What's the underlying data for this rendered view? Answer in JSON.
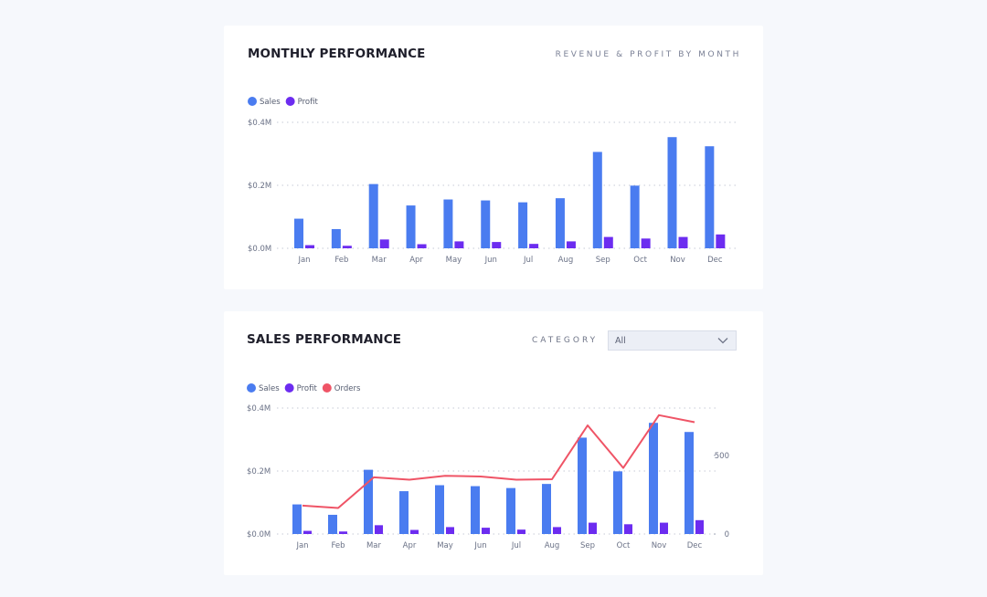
{
  "colors": {
    "sales": "#4a7cf0",
    "profit": "#6c2cf0",
    "orders": "#ef5466",
    "grid": "#c6cad6"
  },
  "card1": {
    "title": "MONTHLY PERFORMANCE",
    "subtitle": "REVENUE & PROFIT BY MONTH"
  },
  "card2": {
    "title": "SALES PERFORMANCE",
    "filter_label": "CATEGORY",
    "filter_value": "All",
    "chevron_icon": "chevron-down-icon"
  },
  "chart_data": [
    {
      "type": "bar",
      "categories": [
        "Jan",
        "Feb",
        "Mar",
        "Apr",
        "May",
        "Jun",
        "Jul",
        "Aug",
        "Sep",
        "Oct",
        "Nov",
        "Dec"
      ],
      "series": [
        {
          "name": "Sales",
          "values": [
            0.094,
            0.061,
            0.204,
            0.136,
            0.155,
            0.152,
            0.146,
            0.159,
            0.306,
            0.199,
            0.353,
            0.324
          ]
        },
        {
          "name": "Profit",
          "values": [
            0.01,
            0.008,
            0.028,
            0.013,
            0.022,
            0.02,
            0.014,
            0.022,
            0.036,
            0.031,
            0.036,
            0.044
          ]
        }
      ],
      "yticks": [
        "$0.0M",
        "$0.2M",
        "$0.4M"
      ],
      "ylim": [
        0,
        0.4
      ],
      "legend_position": "top-left",
      "grid": true
    },
    {
      "type": "bar",
      "categories": [
        "Jan",
        "Feb",
        "Mar",
        "Apr",
        "May",
        "Jun",
        "Jul",
        "Aug",
        "Sep",
        "Oct",
        "Nov",
        "Dec"
      ],
      "series": [
        {
          "name": "Sales",
          "values": [
            0.094,
            0.061,
            0.204,
            0.136,
            0.155,
            0.152,
            0.146,
            0.159,
            0.306,
            0.199,
            0.353,
            0.324
          ]
        },
        {
          "name": "Profit",
          "values": [
            0.01,
            0.008,
            0.028,
            0.013,
            0.022,
            0.02,
            0.014,
            0.022,
            0.036,
            0.031,
            0.036,
            0.044
          ]
        },
        {
          "name": "Orders",
          "type": "line",
          "axis": "right",
          "values": [
            180,
            165,
            360,
            345,
            370,
            365,
            345,
            348,
            690,
            420,
            755,
            710
          ]
        }
      ],
      "yticks": [
        "$0.0M",
        "$0.2M",
        "$0.4M"
      ],
      "ylim": [
        0,
        0.4
      ],
      "y2ticks": [
        "0",
        "500"
      ],
      "y2lim": [
        0,
        800
      ],
      "legend_position": "top-left",
      "grid": true
    }
  ]
}
